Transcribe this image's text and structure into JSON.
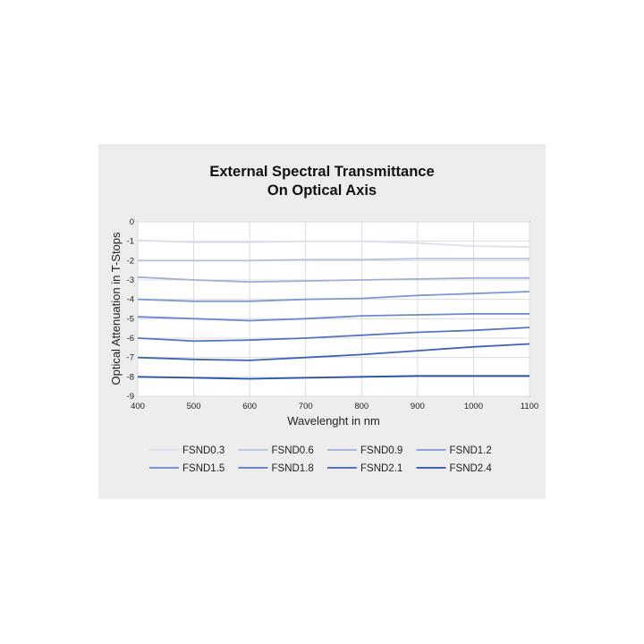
{
  "chart_data": {
    "type": "line",
    "title": [
      "External Spectral Transmittance",
      "On Optical Axis"
    ],
    "xlabel": "Wavelenght in nm",
    "ylabel": "Optical Attenuation in T-Stops",
    "xlim": [
      400,
      1100
    ],
    "ylim": [
      -9,
      0
    ],
    "xticks": [
      "400",
      "500",
      "600",
      "700",
      "800",
      "900",
      "1000",
      "1100"
    ],
    "yticks": [
      "0",
      "-1",
      "-2",
      "-3",
      "-4",
      "-5",
      "-6",
      "-7",
      "-8",
      "-9"
    ],
    "grid": true,
    "legend_placement": "bottom",
    "x": [
      400,
      500,
      600,
      700,
      800,
      900,
      1000,
      1100
    ],
    "series": [
      {
        "name": "FSND0.3",
        "color": "#dcdfea",
        "values": [
          -0.95,
          -1.05,
          -1.05,
          -1.0,
          -1.0,
          -1.1,
          -1.25,
          -1.3
        ]
      },
      {
        "name": "FSND0.6",
        "color": "#b7c3e0",
        "values": [
          -2.0,
          -2.0,
          -2.0,
          -1.95,
          -1.95,
          -1.9,
          -1.9,
          -1.9
        ]
      },
      {
        "name": "FSND0.9",
        "color": "#9dafdb",
        "values": [
          -2.85,
          -3.0,
          -3.1,
          -3.05,
          -3.0,
          -2.95,
          -2.9,
          -2.9
        ]
      },
      {
        "name": "FSND1.2",
        "color": "#7f98d3",
        "values": [
          -4.0,
          -4.1,
          -4.1,
          -4.0,
          -3.95,
          -3.8,
          -3.7,
          -3.6
        ]
      },
      {
        "name": "FSND1.5",
        "color": "#6b88cc",
        "values": [
          -4.9,
          -5.0,
          -5.1,
          -5.0,
          -4.85,
          -4.8,
          -4.75,
          -4.75
        ]
      },
      {
        "name": "FSND1.8",
        "color": "#5477c3",
        "values": [
          -6.0,
          -6.15,
          -6.1,
          -6.0,
          -5.85,
          -5.7,
          -5.6,
          -5.45
        ]
      },
      {
        "name": "FSND2.1",
        "color": "#3c63b8",
        "values": [
          -7.0,
          -7.1,
          -7.15,
          -7.0,
          -6.85,
          -6.65,
          -6.45,
          -6.3
        ]
      },
      {
        "name": "FSND2.4",
        "color": "#2450a8",
        "values": [
          -8.0,
          -8.05,
          -8.1,
          -8.05,
          -8.0,
          -7.95,
          -7.95,
          -7.95
        ]
      }
    ]
  }
}
